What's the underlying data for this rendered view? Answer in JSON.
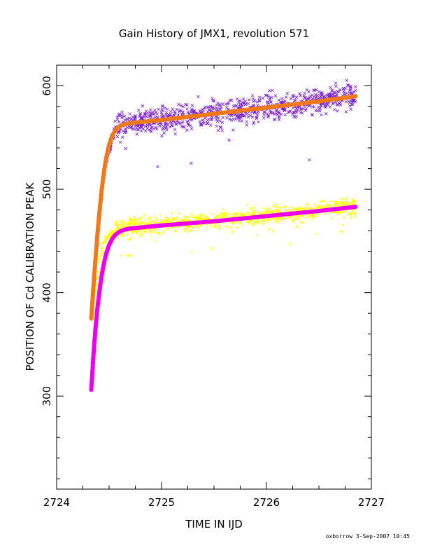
{
  "chart_data": {
    "type": "scatter",
    "title": "Gain History of JMX1, revolution 571",
    "xlabel": "TIME IN IJD",
    "ylabel": "POSITION OF Cd CALIBRATION PEAK",
    "xlim": [
      2724,
      2727
    ],
    "ylim": [
      210,
      620
    ],
    "x_ticks": [
      2724,
      2725,
      2726,
      2727
    ],
    "y_ticks": [
      300,
      400,
      500,
      600
    ],
    "grid": false,
    "legend": "none",
    "series": [
      {
        "marker": "x",
        "color": "#7b1fd1",
        "x_range": [
          2724.33,
          2726.85
        ],
        "x": [
          2724.34,
          2724.36,
          2724.38,
          2724.4,
          2724.42,
          2724.44,
          2724.47,
          2724.5,
          2724.55,
          2724.6,
          2724.7,
          2724.8,
          2724.9,
          2725.0,
          2725.2,
          2725.4,
          2725.6,
          2725.8,
          2726.0,
          2726.2,
          2726.4,
          2726.6,
          2726.8
        ],
        "y": [
          385,
          420,
          445,
          470,
          490,
          505,
          525,
          540,
          555,
          562,
          564,
          566,
          567,
          568,
          570,
          572,
          575,
          577,
          579,
          581,
          584,
          587,
          590
        ],
        "scatter": 22
      },
      {
        "marker": "+",
        "color": "#ffff00",
        "x_range": [
          2724.33,
          2726.85
        ],
        "x": [
          2724.34,
          2724.36,
          2724.38,
          2724.4,
          2724.42,
          2724.44,
          2724.47,
          2724.5,
          2724.55,
          2724.6,
          2724.7,
          2724.8,
          2724.9,
          2725.0,
          2725.2,
          2725.4,
          2725.6,
          2725.8,
          2726.0,
          2726.2,
          2726.4,
          2726.6,
          2726.8
        ],
        "y": [
          375,
          395,
          410,
          425,
          437,
          445,
          452,
          456,
          459,
          461,
          463,
          464,
          465,
          466,
          467,
          469,
          471,
          473,
          475,
          477,
          479,
          481,
          483
        ],
        "scatter": 14
      }
    ],
    "fit_lines": [
      {
        "color": "#f07a1a",
        "x": [
          2724.33,
          2724.35,
          2724.37,
          2724.39,
          2724.41,
          2724.43,
          2724.45,
          2724.47,
          2724.5,
          2724.53,
          2724.56,
          2724.6,
          2724.65,
          2724.7,
          2724.8,
          2725.0,
          2725.5,
          2726.0,
          2726.5,
          2726.85
        ],
        "y": [
          375,
          405,
          432,
          458,
          480,
          500,
          516,
          529,
          543,
          552,
          557,
          561,
          563,
          564,
          565,
          567,
          573,
          579,
          585,
          590
        ]
      },
      {
        "color": "#ee00ee",
        "x": [
          2724.33,
          2724.35,
          2724.37,
          2724.39,
          2724.41,
          2724.43,
          2724.45,
          2724.47,
          2724.5,
          2724.53,
          2724.56,
          2724.6,
          2724.65,
          2724.7,
          2724.8,
          2725.0,
          2725.5,
          2726.0,
          2726.5,
          2726.85
        ],
        "y": [
          306,
          338,
          365,
          386,
          403,
          417,
          428,
          437,
          446,
          452,
          456,
          459,
          461,
          462,
          463,
          465,
          469,
          474,
          479,
          483
        ]
      }
    ],
    "footer": "oxborrow  3-Sep-2007 10:45"
  }
}
